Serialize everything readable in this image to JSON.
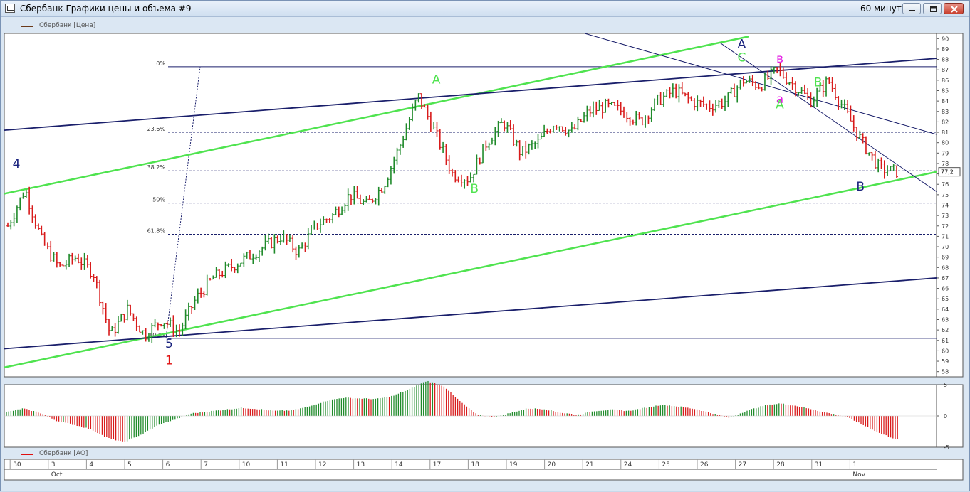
{
  "window": {
    "title": "Сбербанк Графики цены и объема #9",
    "period": "60 минут"
  },
  "legend": {
    "price": "Сбербанк [Цена]",
    "ao": "Сбербанк [AO]"
  },
  "colors": {
    "up_bar": "#1f8a2a",
    "down_bar": "#d81b1b",
    "green_channel": "#4fe34f",
    "navy_line": "#1a1f6b",
    "thin_line": "#1a1f6b",
    "pink_label": "#e31ce3"
  },
  "chart_data": {
    "type": "bar",
    "subtype": "ohlc-hourly",
    "price_axis": {
      "ylim": [
        57.5,
        90.5
      ],
      "ticks": [
        58,
        59,
        60,
        61,
        62,
        63,
        64,
        65,
        66,
        67,
        68,
        69,
        70,
        71,
        72,
        73,
        74,
        75,
        76,
        77,
        78,
        79,
        80,
        81,
        82,
        83,
        84,
        85,
        86,
        87,
        88,
        89,
        90
      ]
    },
    "last_price_label": "77,2",
    "last_price": 77.2,
    "x_axis": {
      "day_labels": [
        "30",
        "3",
        "4",
        "5",
        "6",
        "7",
        "10",
        "11",
        "12",
        "13",
        "14",
        "17",
        "18",
        "19",
        "20",
        "21",
        "24",
        "25",
        "26",
        "27",
        "28",
        "31",
        "1"
      ],
      "month_labels": [
        {
          "label": "Oct",
          "under_day": "3"
        },
        {
          "label": "Nov",
          "under_day": "1"
        }
      ],
      "bars_per_day": 9
    },
    "price_path": [
      72,
      75.5,
      70.5,
      68,
      69,
      67.5,
      61.5,
      64,
      61.5,
      63,
      61.8,
      65,
      67,
      68,
      69,
      70,
      71,
      69.5,
      72,
      73,
      75,
      74,
      76,
      80,
      84.5,
      81,
      77,
      76.5,
      80,
      82,
      79,
      80,
      82,
      81,
      83,
      83.5,
      83,
      82,
      84,
      85,
      84,
      83.5,
      84,
      86,
      85.5,
      87,
      85.5,
      84,
      86,
      83,
      80,
      77.5,
      77.2
    ],
    "fibonacci": [
      {
        "label": "0%",
        "price": 87.3
      },
      {
        "label": "23.6%",
        "price": 81.0
      },
      {
        "label": "38.2%",
        "price": 77.3
      },
      {
        "label": "50%",
        "price": 74.2
      },
      {
        "label": "61.8%",
        "price": 71.2
      },
      {
        "label": "100%",
        "price": 61.2
      }
    ],
    "wave_labels": [
      {
        "text": "4",
        "day_index": 0,
        "price": 77.6,
        "color": "navy"
      },
      {
        "text": "5",
        "day_index": 4,
        "price": 60.3,
        "color": "navy"
      },
      {
        "text": "1",
        "day_index": 4,
        "price": 58.7,
        "color": "red"
      },
      {
        "text": "A",
        "day_index": 11,
        "price": 85.7,
        "color": "green"
      },
      {
        "text": "B",
        "day_index": 12,
        "price": 75.2,
        "color": "green"
      },
      {
        "text": "A",
        "day_index": 19,
        "price": 89.1,
        "color": "navy"
      },
      {
        "text": "C",
        "day_index": 19,
        "price": 87.8,
        "color": "green"
      },
      {
        "text": "в",
        "day_index": 20,
        "price": 87.7,
        "color": "pink"
      },
      {
        "text": "a",
        "day_index": 20,
        "price": 83.8,
        "color": "pink"
      },
      {
        "text": "A",
        "day_index": 20,
        "price": 83.3,
        "color": "green"
      },
      {
        "text": "B",
        "day_index": 21,
        "price": 85.4,
        "color": "green"
      },
      {
        "text": "B",
        "day_index": 22,
        "price": 75.4,
        "color": "navy"
      }
    ],
    "ao": {
      "ylim": [
        -5,
        5
      ],
      "ticks": [
        5,
        0,
        -5
      ],
      "values": [
        0.6,
        1.2,
        0.5,
        -0.8,
        -1.4,
        -2.1,
        -3.5,
        -4.2,
        -3.0,
        -1.5,
        -0.6,
        0.4,
        0.7,
        1.0,
        1.3,
        1.1,
        0.8,
        0.9,
        1.5,
        2.4,
        2.9,
        2.8,
        2.7,
        3.2,
        4.3,
        5.6,
        4.8,
        2.3,
        0.2,
        -0.2,
        0.5,
        1.2,
        1.1,
        0.5,
        0.2,
        0.8,
        1.0,
        0.8,
        1.3,
        1.8,
        1.5,
        1.1,
        0.4,
        -0.3,
        0.8,
        1.6,
        2.0,
        1.6,
        1.0,
        0.4,
        -0.2,
        -1.5,
        -2.8,
        -3.8
      ]
    }
  }
}
